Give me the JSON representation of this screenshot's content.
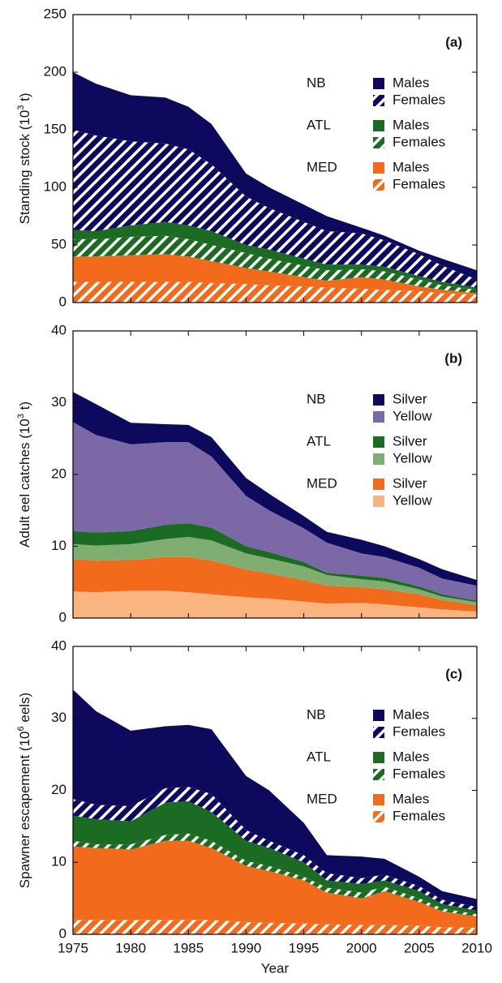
{
  "chart_data": [
    {
      "type": "area",
      "stacked": true,
      "panel_label": "(a)",
      "ylabel": [
        "Standing stock (10",
        "3",
        " t)"
      ],
      "x": [
        1975,
        1977,
        1980,
        1983,
        1985,
        1987,
        1990,
        1992,
        1995,
        1997,
        2000,
        2002,
        2005,
        2007,
        2010
      ],
      "xlim": [
        1975,
        2010
      ],
      "xticks": [
        1975,
        1980,
        1985,
        1990,
        1995,
        2000,
        2005,
        2010
      ],
      "ylim": [
        0,
        250
      ],
      "yticks": [
        0,
        50,
        100,
        150,
        200,
        250
      ],
      "legend": "upper right",
      "series": [
        {
          "group": "MED",
          "name": "Females",
          "color": "#f26b1d",
          "pattern": "hatch",
          "values": [
            18,
            18,
            18,
            18,
            18,
            17,
            16,
            15,
            14,
            13,
            12,
            11,
            10,
            8,
            7
          ]
        },
        {
          "group": "MED",
          "name": "Males",
          "color": "#f26b1d",
          "values": [
            22,
            22,
            23,
            24,
            22,
            19,
            14,
            12,
            8,
            6,
            10,
            9,
            4,
            3,
            1
          ]
        },
        {
          "group": "ATL",
          "name": "Females",
          "color": "#1b6b22",
          "pattern": "hatch",
          "values": [
            15,
            15,
            16,
            16,
            15,
            14,
            13,
            11,
            10,
            9,
            7,
            7,
            6,
            4,
            3
          ]
        },
        {
          "group": "ATL",
          "name": "Males",
          "color": "#1b6b22",
          "values": [
            8,
            7,
            10,
            12,
            12,
            12,
            7,
            8,
            6,
            5,
            4,
            4,
            3,
            3,
            2
          ]
        },
        {
          "group": "NB",
          "name": "Females",
          "color": "#0d0a5e",
          "pattern": "hatch",
          "values": [
            87,
            83,
            73,
            68,
            66,
            58,
            42,
            36,
            32,
            29,
            27,
            23,
            19,
            14,
            7
          ]
        },
        {
          "group": "NB",
          "name": "Males",
          "color": "#0d0a5e",
          "values": [
            50,
            45,
            40,
            40,
            37,
            35,
            20,
            18,
            15,
            13,
            5,
            4,
            3,
            6,
            8
          ]
        }
      ]
    },
    {
      "type": "area",
      "stacked": true,
      "panel_label": "(b)",
      "ylabel": [
        "Adult eel catches (10",
        "3",
        " t)"
      ],
      "x": [
        1975,
        1977,
        1980,
        1983,
        1985,
        1987,
        1990,
        1992,
        1995,
        1997,
        2000,
        2002,
        2005,
        2007,
        2010
      ],
      "xlim": [
        1975,
        2010
      ],
      "xticks": [
        1975,
        1980,
        1985,
        1990,
        1995,
        2000,
        2005,
        2010
      ],
      "ylim": [
        0,
        40
      ],
      "yticks": [
        0,
        10,
        20,
        30,
        40
      ],
      "legend": "upper right",
      "series": [
        {
          "group": "MED",
          "name": "Yellow",
          "color": "#f9b47f",
          "values": [
            3.7,
            3.6,
            3.8,
            3.8,
            3.6,
            3.3,
            2.9,
            2.7,
            2.3,
            2.0,
            2.1,
            1.9,
            1.5,
            1.2,
            0.9
          ]
        },
        {
          "group": "MED",
          "name": "Silver",
          "color": "#f26b1d",
          "values": [
            4.5,
            4.4,
            4.3,
            4.7,
            4.9,
            4.7,
            3.9,
            3.5,
            3.0,
            2.5,
            2.2,
            2.1,
            1.8,
            1.3,
            0.9
          ]
        },
        {
          "group": "ATL",
          "name": "Yellow",
          "color": "#80ad70",
          "values": [
            2.1,
            2.1,
            2.2,
            2.5,
            2.8,
            2.8,
            2.2,
            2.1,
            1.9,
            1.5,
            1.1,
            1.1,
            0.7,
            0.5,
            0.4
          ]
        },
        {
          "group": "ATL",
          "name": "Silver",
          "color": "#1b6b22",
          "values": [
            1.8,
            1.8,
            1.8,
            2.0,
            1.9,
            1.8,
            1.0,
            0.9,
            0.6,
            0.3,
            0.5,
            0.5,
            0.4,
            0.3,
            0.2
          ]
        },
        {
          "group": "NB",
          "name": "Yellow",
          "color": "#7b68a6",
          "values": [
            15.2,
            13.6,
            12.1,
            11.5,
            11.3,
            9.9,
            7.0,
            5.8,
            4.7,
            4.2,
            3.1,
            2.9,
            2.6,
            2.2,
            2.1
          ]
        },
        {
          "group": "NB",
          "name": "Silver",
          "color": "#0d0a5e",
          "values": [
            4.2,
            4.3,
            3.0,
            2.5,
            2.4,
            2.7,
            2.5,
            2.3,
            1.7,
            1.5,
            1.9,
            1.5,
            1.2,
            1.3,
            0.8
          ]
        }
      ]
    },
    {
      "type": "area",
      "stacked": true,
      "panel_label": "(c)",
      "ylabel": [
        "Spawner escapement (10",
        "6",
        " eels)"
      ],
      "xlabel": "Year",
      "x": [
        1975,
        1977,
        1980,
        1983,
        1985,
        1987,
        1990,
        1992,
        1995,
        1997,
        2000,
        2002,
        2005,
        2007,
        2010
      ],
      "xlim": [
        1975,
        2010
      ],
      "xticks": [
        1975,
        1980,
        1985,
        1990,
        1995,
        2000,
        2005,
        2010
      ],
      "ylim": [
        0,
        40
      ],
      "yticks": [
        0,
        10,
        20,
        30,
        40
      ],
      "legend": "upper right",
      "series": [
        {
          "group": "MED",
          "name": "Females",
          "color": "#f26b1d",
          "pattern": "hatch",
          "values": [
            2,
            2,
            2,
            2,
            2,
            2,
            1.7,
            1.6,
            1.5,
            1.4,
            1.3,
            1.3,
            1.2,
            1.0,
            0.9
          ]
        },
        {
          "group": "MED",
          "name": "Males",
          "color": "#f26b1d",
          "values": [
            10.2,
            10.0,
            9.8,
            11.0,
            11.0,
            10.0,
            7.8,
            7.2,
            6.0,
            4.4,
            3.7,
            4.7,
            3.3,
            2.2,
            1.6
          ]
        },
        {
          "group": "ATL",
          "name": "Females",
          "color": "#1b6b22",
          "pattern": "hatch",
          "values": [
            0.8,
            0.5,
            0.7,
            0.8,
            1.0,
            1.0,
            0.7,
            0.7,
            0.5,
            0.7,
            0.8,
            0.6,
            0.5,
            0.4,
            0.3
          ]
        },
        {
          "group": "ATL",
          "name": "Males",
          "color": "#1b6b22",
          "values": [
            3.5,
            3.5,
            3.2,
            4.5,
            4.5,
            4.0,
            2.8,
            2.5,
            2.0,
            1.0,
            1.2,
            0.9,
            1.0,
            0.6,
            0.5
          ]
        },
        {
          "group": "NB",
          "name": "Females",
          "color": "#0d0a5e",
          "pattern": "hatch",
          "values": [
            2.3,
            2.0,
            2.1,
            2.0,
            2.0,
            2.5,
            1.5,
            1.0,
            1.0,
            1.0,
            0.8,
            0.8,
            0.7,
            0.6,
            0.5
          ]
        },
        {
          "group": "NB",
          "name": "Males",
          "color": "#0d0a5e",
          "values": [
            15.2,
            13.0,
            10.5,
            8.6,
            8.6,
            9.0,
            7.5,
            7.0,
            4.5,
            2.5,
            3.0,
            2.2,
            1.3,
            1.2,
            1.1
          ]
        }
      ]
    }
  ]
}
